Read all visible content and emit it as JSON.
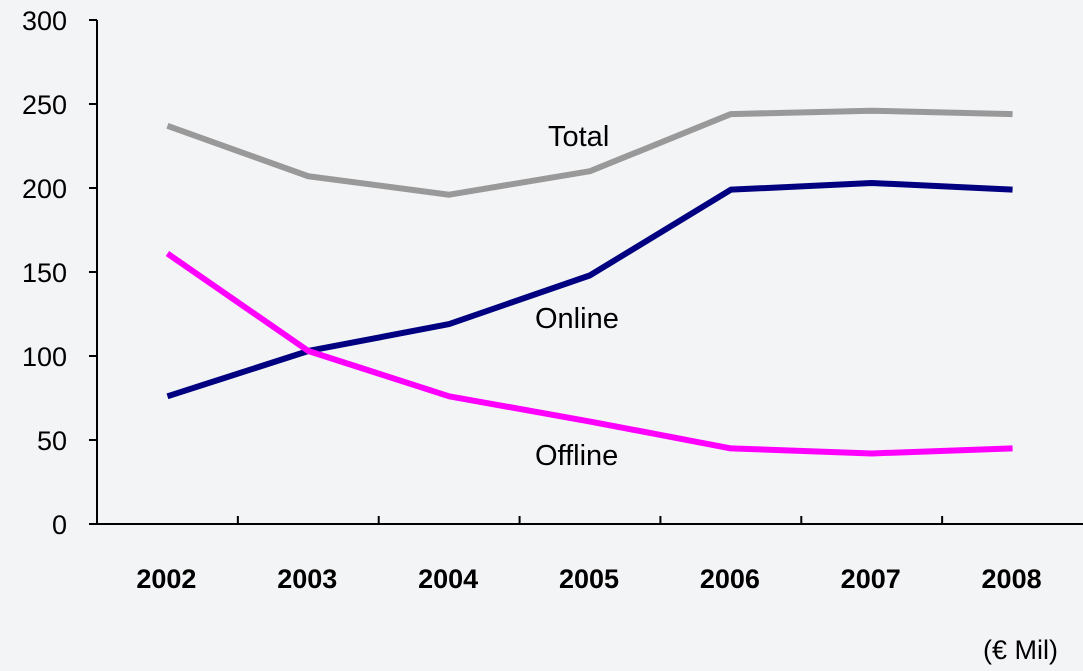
{
  "chart_data": {
    "type": "line",
    "title": "",
    "xlabel": "",
    "ylabel": "",
    "unit": "(€ Mil)",
    "categories": [
      "2002",
      "2003",
      "2004",
      "2005",
      "2006",
      "2007",
      "2008"
    ],
    "ylim": [
      0,
      300
    ],
    "yticks": [
      "0",
      "50",
      "100",
      "150",
      "200",
      "250",
      "300"
    ],
    "grid": false,
    "legend": "none",
    "series": [
      {
        "name": "Total",
        "color": "#999999",
        "values": [
          237,
          207,
          196,
          210,
          244,
          246,
          244
        ]
      },
      {
        "name": "Online",
        "color": "#000080",
        "values": [
          76,
          103,
          119,
          148,
          199,
          203,
          199
        ]
      },
      {
        "name": "Offline",
        "color": "#ff00ff",
        "values": [
          161,
          103,
          76,
          61,
          45,
          42,
          45
        ]
      }
    ]
  }
}
